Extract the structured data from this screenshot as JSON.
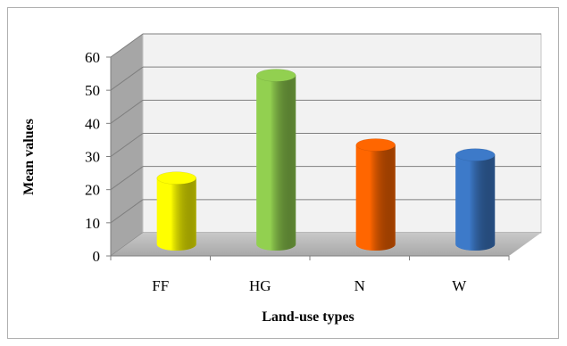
{
  "chart_data": {
    "type": "bar",
    "style": "3d-cylinder",
    "categories": [
      "FF",
      "HG",
      "N",
      "W"
    ],
    "values": [
      20,
      51,
      30,
      27
    ],
    "colors": [
      "#ffff00",
      "#92d050",
      "#ff6600",
      "#3d7ac9"
    ],
    "xlabel": "Land-use types",
    "ylabel": "Mean values",
    "ylim": [
      0,
      60
    ],
    "yticks": [
      "0",
      "10",
      "20",
      "30",
      "40",
      "50",
      "60"
    ],
    "grid": true,
    "legend": "none"
  }
}
